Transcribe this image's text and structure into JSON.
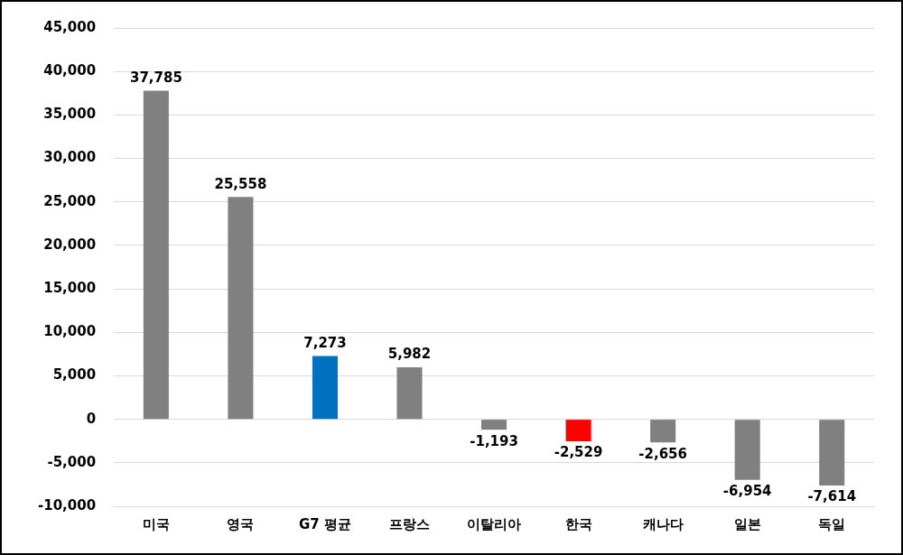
{
  "chart_data": {
    "type": "bar",
    "categories": [
      "미국",
      "영국",
      "G7 평균",
      "프랑스",
      "이탈리아",
      "한국",
      "캐나다",
      "일본",
      "독일"
    ],
    "values": [
      37785,
      25558,
      7273,
      5982,
      -1193,
      -2529,
      -2656,
      -6954,
      -7614
    ],
    "value_labels": [
      "37,785",
      "25,558",
      "7,273",
      "5,982",
      "-1,193",
      "-2,529",
      "-2,656",
      "-6,954",
      "-7,614"
    ],
    "colors": [
      "#808080",
      "#808080",
      "#0070c0",
      "#808080",
      "#808080",
      "#ff0000",
      "#808080",
      "#808080",
      "#808080"
    ],
    "ylim": [
      -10000,
      45000
    ],
    "yticks": [
      {
        "value": -10000,
        "label": "-10,000"
      },
      {
        "value": -5000,
        "label": "-5,000"
      },
      0,
      {
        "value": 5000,
        "label": "5,000"
      },
      {
        "value": 10000,
        "label": "10,000"
      },
      {
        "value": 15000,
        "label": "15,000"
      },
      {
        "value": 20000,
        "label": "20,000"
      },
      {
        "value": 25000,
        "label": "25,000"
      },
      {
        "value": 30000,
        "label": "30,000"
      },
      {
        "value": 35000,
        "label": "35,000"
      },
      {
        "value": 40000,
        "label": "40,000"
      },
      {
        "value": 45000,
        "label": "45,000"
      }
    ],
    "grid": true,
    "data_labels": true
  }
}
